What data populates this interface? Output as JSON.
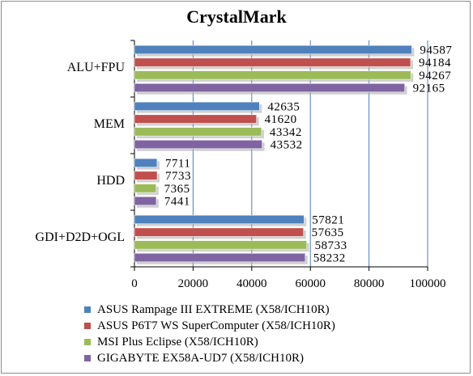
{
  "chart_data": {
    "type": "bar",
    "orientation": "horizontal",
    "title": "CrystalMark",
    "categories": [
      "ALU+FPU",
      "MEM",
      "HDD",
      "GDI+D2D+OGL"
    ],
    "series": [
      {
        "name": "ASUS Rampage III EXTREME (X58/ICH10R)",
        "color": "#4f81bd",
        "values": [
          94587,
          42635,
          7711,
          57821
        ]
      },
      {
        "name": "ASUS P6T7 WS SuperComputer (X58/ICH10R)",
        "color": "#c0504d",
        "values": [
          94184,
          41620,
          7733,
          57635
        ]
      },
      {
        "name": "MSI Plus Eclipse (X58/ICH10R)",
        "color": "#9bbb59",
        "values": [
          94267,
          43342,
          7365,
          58733
        ]
      },
      {
        "name": "GIGABYTE EX58A-UD7 (X58/ICH10R)",
        "color": "#8064a2",
        "values": [
          92165,
          43532,
          7441,
          58232
        ]
      }
    ],
    "x_ticks": [
      "0",
      "20000",
      "40000",
      "60000",
      "80000",
      "100000"
    ],
    "xlim": [
      0,
      100000
    ],
    "grid": true,
    "legend_position": "bottom",
    "gridline_color": "#4a7ebb"
  }
}
